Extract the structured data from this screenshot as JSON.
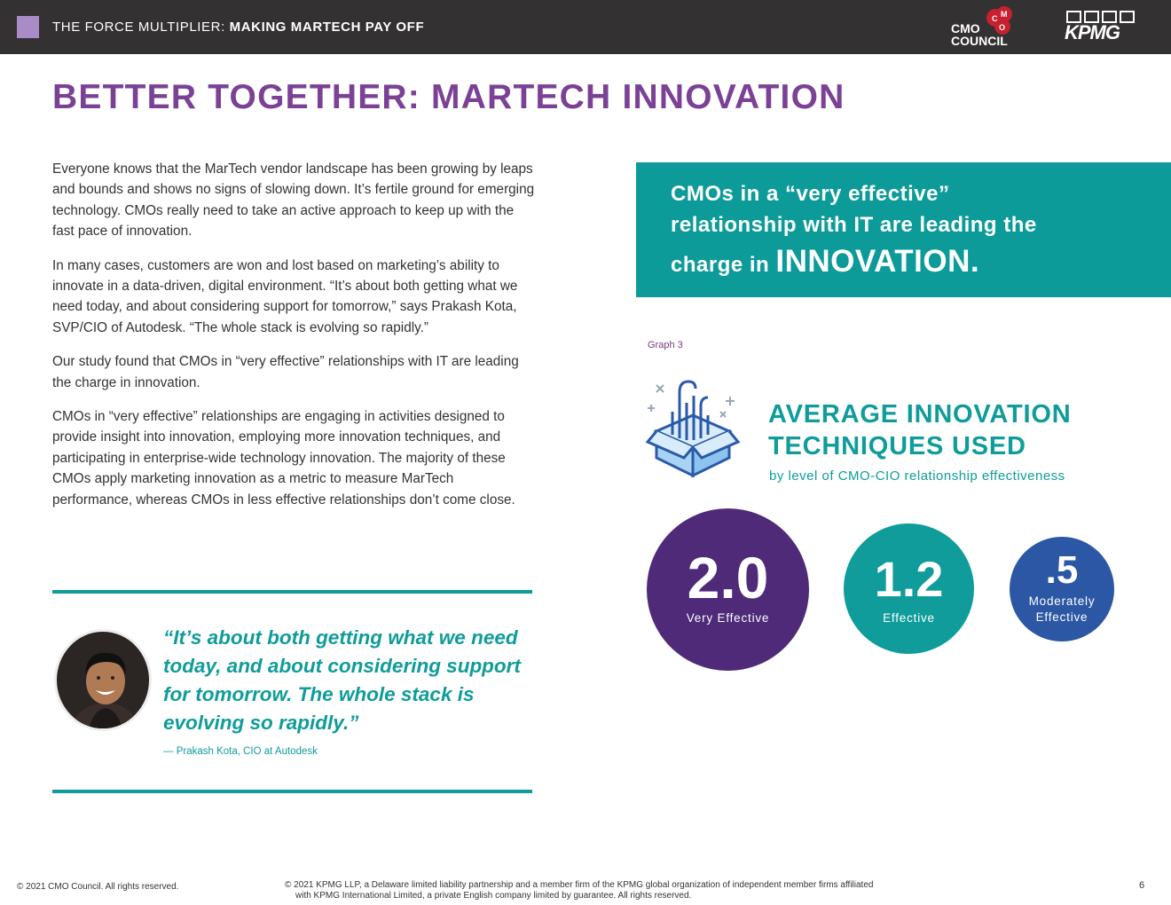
{
  "header": {
    "title_regular": "THE FORCE MULTIPLIER: ",
    "title_bold": "MAKING MARTECH PAY OFF",
    "cmo_logo_line1": "CMO",
    "cmo_logo_line2": "COUNCIL",
    "kpmg_logo": "KPMG",
    "swatch_color": "#a98bc6",
    "bar_color": "#333132"
  },
  "page_title": "BETTER TOGETHER: MARTECH INNOVATION",
  "body": {
    "paragraphs": [
      "Everyone knows that the MarTech vendor landscape has been growing by leaps and bounds and shows no signs of slowing down. It’s fertile ground for emerging technology. CMOs really need to take an active approach to keep up with the fast pace of innovation.",
      "In many cases, customers are won and lost based on marketing’s ability to innovate in a data-driven, digital environment. “It’s about both getting what we need today, and about considering support for tomorrow,” says Prakash Kota, SVP/CIO of Autodesk. “The whole stack is evolving so rapidly.”",
      "Our study found that CMOs in “very effective” relationships with IT are leading the charge in innovation.",
      "CMOs in “very effective” relationships are engaging in activities designed to provide insight into innovation, employing more innovation techniques, and participating in enterprise-wide technology innovation. The majority of these CMOs apply marketing innovation as a metric to measure MarTech performance, whereas CMOs in less effective relationships don’t come close."
    ]
  },
  "quote": {
    "text": "“It’s about both getting what we need today, and about considering support for tomorrow. The whole stack is evolving so rapidly.”",
    "attribution": "— Prakash Kota, CIO at Autodesk",
    "accent_color": "#0f9c9b"
  },
  "callout": {
    "line1": "CMOs in a “very effective”",
    "line2": "relationship with IT are leading the",
    "line3_regular": "charge in ",
    "line3_big": "INNOVATION.",
    "background": "#0d9b9a"
  },
  "graph": {
    "label": "Graph 3",
    "icon": "innovation-box-icon",
    "title_line1": "AVERAGE INNOVATION",
    "title_line2": "TECHNIQUES USED",
    "subtitle": "by level of CMO-CIO relationship effectiveness"
  },
  "chart_data": {
    "type": "bubble",
    "title": "AVERAGE INNOVATION TECHNIQUES USED",
    "subtitle": "by level of CMO-CIO relationship effectiveness",
    "series": [
      {
        "name": "Very Effective",
        "value": 2.0,
        "display": "2.0",
        "color": "#4e2a78"
      },
      {
        "name": "Effective",
        "value": 1.2,
        "display": "1.2",
        "color": "#0f9c9b"
      },
      {
        "name": "Moderately Effective",
        "value": 0.5,
        "display": ".5",
        "label_line1": "Moderately",
        "label_line2": "Effective",
        "color": "#2c57a4"
      }
    ]
  },
  "footer": {
    "left": "© 2021 CMO Council. All rights reserved.",
    "mid_line1": "© 2021 KPMG LLP, a Delaware limited liability partnership and a member firm of the KPMG global organization of independent member firms affiliated",
    "mid_line2": "with KPMG International Limited, a private English company limited by guarantee. All rights reserved.",
    "page_number": "6"
  }
}
